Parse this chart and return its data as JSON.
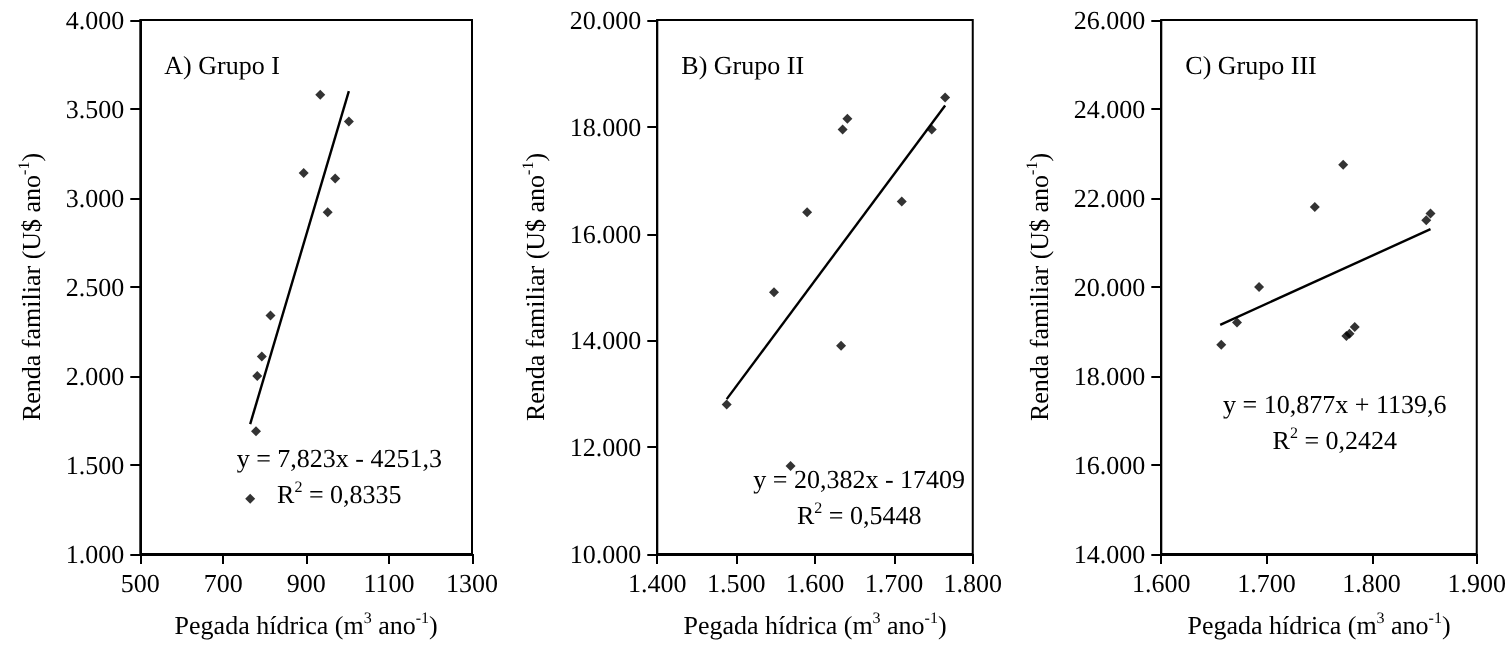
{
  "chart_data": [
    {
      "type": "scatter",
      "xlabel": "Pegada hídrica (m$^{3}$ ano$^{-1}$)",
      "ylabel": "Renda familiar (U$ ano$^{-1}$)",
      "xlim": [
        500,
        1300
      ],
      "xticks": [
        500,
        700,
        900,
        1100,
        1300
      ],
      "ylim": [
        1000,
        4000
      ],
      "yticks": [
        {
          "value": 1000,
          "label": "1.000"
        },
        {
          "value": 1500,
          "label": "1.500"
        },
        {
          "value": 2000,
          "label": "2.000"
        },
        {
          "value": 2500,
          "label": "2.500"
        },
        {
          "value": 3000,
          "label": "3.000"
        },
        {
          "value": 3500,
          "label": "3.500"
        },
        {
          "value": 4000,
          "label": "4.000"
        }
      ],
      "marker": "diamond",
      "annotations": [
        "A) Grupo I",
        "y = 7,823x - 4251,3",
        "R$^{2}$ = 0,8335"
      ],
      "series": [
        {
          "type": "scatter",
          "color": "#000000",
          "x": [
            765,
            779,
            782,
            793,
            814,
            894,
            934,
            952,
            970,
            1003
          ],
          "values": [
            1310,
            1690,
            2000,
            2110,
            2340,
            3140,
            3580,
            2920,
            3110,
            3430
          ]
        },
        {
          "type": "line",
          "color": "#000000",
          "line_style": "solid",
          "marker": "none",
          "x": [
            765,
            1003
          ],
          "values": [
            1730,
            3600
          ]
        }
      ]
    },
    {
      "type": "scatter",
      "xlabel": "Pegada hídrica (m$^{3}$ ano$^{-1}$)",
      "ylabel": "Renda familiar (U$ ano$^{-1}$)",
      "xlim": [
        1400,
        1800
      ],
      "xticks": [
        {
          "value": 1400,
          "label": "1.400"
        },
        {
          "value": 1500,
          "label": "1.500"
        },
        {
          "value": 1600,
          "label": "1.600"
        },
        {
          "value": 1700,
          "label": "1.700"
        },
        {
          "value": 1800,
          "label": "1.800"
        }
      ],
      "ylim": [
        10000,
        20000
      ],
      "yticks": [
        {
          "value": 10000,
          "label": "10.000"
        },
        {
          "value": 12000,
          "label": "12.000"
        },
        {
          "value": 14000,
          "label": "14.000"
        },
        {
          "value": 16000,
          "label": "16.000"
        },
        {
          "value": 18000,
          "label": "18.000"
        },
        {
          "value": 20000,
          "label": "20.000"
        }
      ],
      "marker": "diamond",
      "annotations": [
        "B) Grupo II",
        "y = 20,382x - 17409",
        "R$^{2}$ = 0,5448"
      ],
      "series": [
        {
          "type": "scatter",
          "color": "#000000",
          "x": [
            1488,
            1548,
            1569,
            1590,
            1633,
            1635,
            1641,
            1710,
            1748,
            1765
          ],
          "values": [
            12800,
            14900,
            11650,
            16400,
            13900,
            17950,
            18150,
            16600,
            17950,
            18550
          ]
        },
        {
          "type": "line",
          "color": "#000000",
          "line_style": "solid",
          "marker": "none",
          "x": [
            1488,
            1765
          ],
          "values": [
            12900,
            18400
          ]
        }
      ]
    },
    {
      "type": "scatter",
      "xlabel": "Pegada hídrica (m$^{3}$ ano$^{-1}$)",
      "ylabel": "Renda familiar (U$ ano$^{-1}$)",
      "xlim": [
        1600,
        1900
      ],
      "xticks": [
        {
          "value": 1600,
          "label": "1.600"
        },
        {
          "value": 1700,
          "label": "1.700"
        },
        {
          "value": 1800,
          "label": "1.800"
        },
        {
          "value": 1900,
          "label": "1.900"
        }
      ],
      "ylim": [
        14000,
        26000
      ],
      "yticks": [
        {
          "value": 14000,
          "label": "14.000"
        },
        {
          "value": 16000,
          "label": "16.000"
        },
        {
          "value": 18000,
          "label": "18.000"
        },
        {
          "value": 20000,
          "label": "20.000"
        },
        {
          "value": 22000,
          "label": "22.000"
        },
        {
          "value": 24000,
          "label": "24.000"
        },
        {
          "value": 26000,
          "label": "26.000"
        }
      ],
      "marker": "diamond",
      "annotations": [
        "C) Grupo III",
        "y = 10,877x + 1139,6",
        "R$^{2}$ = 0,2424"
      ],
      "series": [
        {
          "type": "scatter",
          "color": "#000000",
          "x": [
            1657,
            1672,
            1693,
            1746,
            1773,
            1776,
            1779,
            1784,
            1852,
            1856
          ],
          "values": [
            18700,
            19200,
            20000,
            21800,
            22750,
            18900,
            18950,
            19100,
            21500,
            21650
          ]
        },
        {
          "type": "line",
          "color": "#000000",
          "line_style": "solid",
          "marker": "none",
          "x": [
            1656,
            1856
          ],
          "values": [
            19150,
            21300
          ]
        }
      ]
    }
  ]
}
